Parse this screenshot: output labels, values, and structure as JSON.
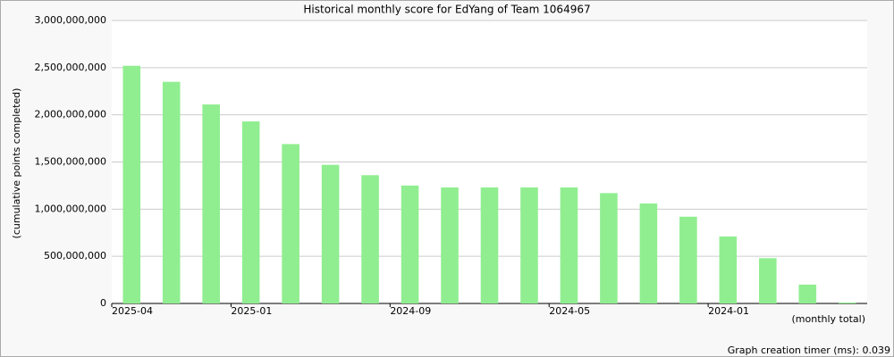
{
  "chart_data": {
    "type": "bar",
    "title": "Historical monthly score for EdYang of Team 1064967",
    "y_label": "(cumulative points completed)",
    "legend_note": "(monthly total)",
    "footer": "Graph creation timer (ms): 0.039",
    "categories": [
      "2025-04",
      null,
      null,
      "2025-01",
      null,
      null,
      null,
      "2024-09",
      null,
      null,
      null,
      "2024-05",
      null,
      null,
      null,
      "2024-01",
      null,
      null,
      null
    ],
    "values": [
      2520000000,
      2350000000,
      2110000000,
      1930000000,
      1690000000,
      1470000000,
      1360000000,
      1250000000,
      1230000000,
      1230000000,
      1230000000,
      1230000000,
      1170000000,
      1060000000,
      920000000,
      710000000,
      480000000,
      200000000,
      10000000
    ],
    "color": "#90ee90",
    "ylim": [
      0,
      3000000000
    ],
    "yticks": [
      0,
      {
        "value": 500000000,
        "label": "500,000,000"
      },
      {
        "value": 1000000000,
        "label": "1,000,000,000"
      },
      {
        "value": 1500000000,
        "label": "1,500,000,000"
      },
      {
        "value": 2000000000,
        "label": "2,000,000,000"
      },
      {
        "value": 2500000000,
        "label": "2,500,000,000"
      },
      {
        "value": 3000000000,
        "label": "3,000,000,000"
      }
    ],
    "grid": true
  }
}
